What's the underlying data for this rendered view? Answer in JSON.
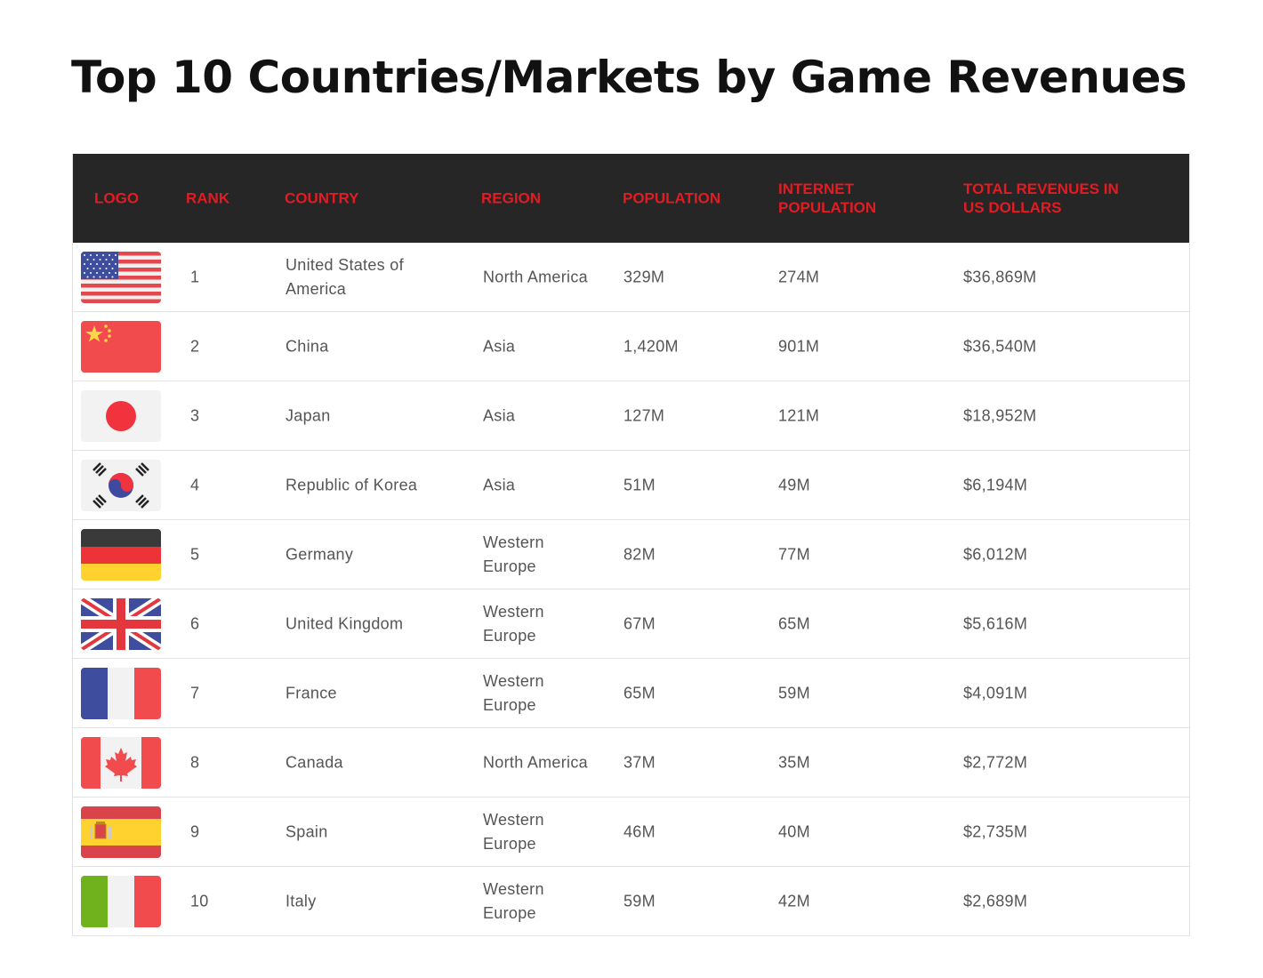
{
  "title": "Top 10 Countries/Markets by Game Revenues",
  "headers": {
    "logo": "LOGO",
    "rank": "RANK",
    "country": "COUNTRY",
    "region": "REGION",
    "population": "POPULATION",
    "internet_population": "INTERNET POPULATION",
    "revenues": "TOTAL REVENUES IN US DOLLARS"
  },
  "colors": {
    "header_bg": "#262626",
    "header_text": "#e31b23"
  },
  "rows": [
    {
      "flag": "usa-flag-icon",
      "rank": "1",
      "country": "United States of America",
      "region": "North America",
      "population": "329M",
      "internet_population": "274M",
      "revenues": "$36,869M"
    },
    {
      "flag": "china-flag-icon",
      "rank": "2",
      "country": "China",
      "region": "Asia",
      "population": "1,420M",
      "internet_population": "901M",
      "revenues": "$36,540M"
    },
    {
      "flag": "japan-flag-icon",
      "rank": "3",
      "country": "Japan",
      "region": "Asia",
      "population": "127M",
      "internet_population": "121M",
      "revenues": "$18,952M"
    },
    {
      "flag": "korea-flag-icon",
      "rank": "4",
      "country": "Republic of Korea",
      "region": "Asia",
      "population": "51M",
      "internet_population": "49M",
      "revenues": "$6,194M"
    },
    {
      "flag": "germany-flag-icon",
      "rank": "5",
      "country": "Germany",
      "region": "Western Europe",
      "population": "82M",
      "internet_population": "77M",
      "revenues": "$6,012M"
    },
    {
      "flag": "uk-flag-icon",
      "rank": "6",
      "country": "United Kingdom",
      "region": "Western Europe",
      "population": "67M",
      "internet_population": "65M",
      "revenues": "$5,616M"
    },
    {
      "flag": "france-flag-icon",
      "rank": "7",
      "country": "France",
      "region": "Western Europe",
      "population": "65M",
      "internet_population": "59M",
      "revenues": "$4,091M"
    },
    {
      "flag": "canada-flag-icon",
      "rank": "8",
      "country": "Canada",
      "region": "North America",
      "population": "37M",
      "internet_population": "35M",
      "revenues": "$2,772M"
    },
    {
      "flag": "spain-flag-icon",
      "rank": "9",
      "country": "Spain",
      "region": "Western Europe",
      "population": "46M",
      "internet_population": "40M",
      "revenues": "$2,735M"
    },
    {
      "flag": "italy-flag-icon",
      "rank": "10",
      "country": "Italy",
      "region": "Western Europe",
      "population": "59M",
      "internet_population": "42M",
      "revenues": "$2,689M"
    }
  ]
}
